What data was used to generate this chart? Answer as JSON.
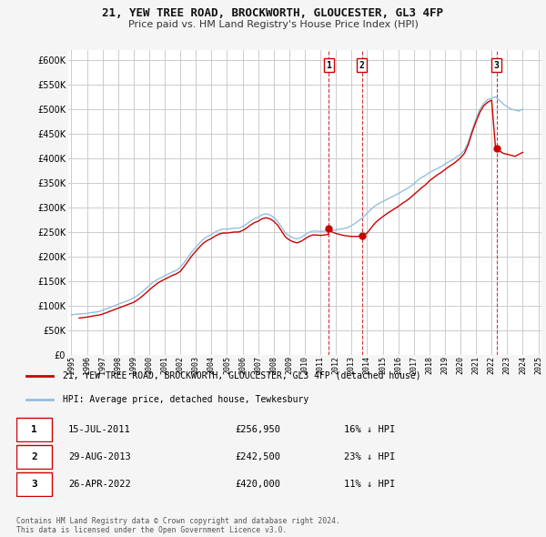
{
  "title1": "21, YEW TREE ROAD, BROCKWORTH, GLOUCESTER, GL3 4FP",
  "title2": "Price paid vs. HM Land Registry's House Price Index (HPI)",
  "ylim": [
    0,
    620000
  ],
  "yticks": [
    0,
    50000,
    100000,
    150000,
    200000,
    250000,
    300000,
    350000,
    400000,
    450000,
    500000,
    550000,
    600000
  ],
  "background_color": "#f5f5f5",
  "plot_bg_color": "#ffffff",
  "grid_color": "#cccccc",
  "hpi_color": "#92c0e0",
  "price_color": "#cc0000",
  "transactions": [
    {
      "date": 2011.54,
      "price": 256950,
      "label": "1"
    },
    {
      "date": 2013.66,
      "price": 242500,
      "label": "2"
    },
    {
      "date": 2022.32,
      "price": 420000,
      "label": "3"
    }
  ],
  "legend_price_label": "21, YEW TREE ROAD, BROCKWORTH, GLOUCESTER, GL3 4FP (detached house)",
  "legend_hpi_label": "HPI: Average price, detached house, Tewkesbury",
  "table_rows": [
    {
      "num": "1",
      "date": "15-JUL-2011",
      "price": "£256,950",
      "note": "16% ↓ HPI"
    },
    {
      "num": "2",
      "date": "29-AUG-2013",
      "price": "£242,500",
      "note": "23% ↓ HPI"
    },
    {
      "num": "3",
      "date": "26-APR-2022",
      "price": "£420,000",
      "note": "11% ↓ HPI"
    }
  ],
  "footer": "Contains HM Land Registry data © Crown copyright and database right 2024.\nThis data is licensed under the Open Government Licence v3.0.",
  "hpi_years": [
    1995.0,
    1995.25,
    1995.5,
    1995.75,
    1996.0,
    1996.25,
    1996.5,
    1996.75,
    1997.0,
    1997.25,
    1997.5,
    1997.75,
    1998.0,
    1998.25,
    1998.5,
    1998.75,
    1999.0,
    1999.25,
    1999.5,
    1999.75,
    2000.0,
    2000.25,
    2000.5,
    2000.75,
    2001.0,
    2001.25,
    2001.5,
    2001.75,
    2002.0,
    2002.25,
    2002.5,
    2002.75,
    2003.0,
    2003.25,
    2003.5,
    2003.75,
    2004.0,
    2004.25,
    2004.5,
    2004.75,
    2005.0,
    2005.25,
    2005.5,
    2005.75,
    2006.0,
    2006.25,
    2006.5,
    2006.75,
    2007.0,
    2007.25,
    2007.5,
    2007.75,
    2008.0,
    2008.25,
    2008.5,
    2008.75,
    2009.0,
    2009.25,
    2009.5,
    2009.75,
    2010.0,
    2010.25,
    2010.5,
    2010.75,
    2011.0,
    2011.25,
    2011.5,
    2011.75,
    2012.0,
    2012.25,
    2012.5,
    2012.75,
    2013.0,
    2013.25,
    2013.5,
    2013.75,
    2014.0,
    2014.25,
    2014.5,
    2014.75,
    2015.0,
    2015.25,
    2015.5,
    2015.75,
    2016.0,
    2016.25,
    2016.5,
    2016.75,
    2017.0,
    2017.25,
    2017.5,
    2017.75,
    2018.0,
    2018.25,
    2018.5,
    2018.75,
    2019.0,
    2019.25,
    2019.5,
    2019.75,
    2020.0,
    2020.25,
    2020.5,
    2020.75,
    2021.0,
    2021.25,
    2021.5,
    2021.75,
    2022.0,
    2022.25,
    2022.5,
    2022.75,
    2023.0,
    2023.25,
    2023.5,
    2023.75,
    2024.0
  ],
  "hpi_values": [
    82000,
    82500,
    83500,
    84000,
    84500,
    86000,
    87000,
    88000,
    91000,
    94000,
    97000,
    100000,
    103000,
    106000,
    109000,
    112000,
    116000,
    121000,
    127000,
    134000,
    141000,
    148000,
    153000,
    157000,
    161000,
    165000,
    169000,
    172000,
    178000,
    188000,
    199000,
    210000,
    219000,
    228000,
    236000,
    241000,
    245000,
    250000,
    254000,
    256000,
    256000,
    257000,
    258000,
    258000,
    261000,
    266000,
    272000,
    277000,
    280000,
    285000,
    287000,
    285000,
    280000,
    272000,
    260000,
    248000,
    242000,
    238000,
    236000,
    239000,
    244000,
    249000,
    252000,
    252000,
    251000,
    252000,
    253000,
    253000,
    254000,
    256000,
    257000,
    259000,
    263000,
    268000,
    274000,
    280000,
    288000,
    296000,
    303000,
    308000,
    312000,
    316000,
    320000,
    324000,
    328000,
    333000,
    337000,
    342000,
    348000,
    355000,
    361000,
    365000,
    371000,
    375000,
    379000,
    383000,
    388000,
    393000,
    397000,
    403000,
    408000,
    416000,
    433000,
    458000,
    480000,
    500000,
    512000,
    519000,
    522000,
    525000,
    518000,
    510000,
    505000,
    500000,
    498000,
    496000,
    500000
  ],
  "price_years_segments": [
    [
      1995.5,
      1995.75,
      1996.0,
      1996.25,
      1996.5,
      1996.75,
      1997.0,
      1997.25,
      1997.5,
      1997.75,
      1998.0,
      1998.25,
      1998.5,
      1998.75,
      1999.0,
      1999.25,
      1999.5,
      1999.75,
      2000.0,
      2000.25,
      2000.5,
      2000.75,
      2001.0,
      2001.25,
      2001.5,
      2001.75,
      2002.0,
      2002.25,
      2002.5,
      2002.75,
      2003.0,
      2003.25,
      2003.5,
      2003.75,
      2004.0,
      2004.25,
      2004.5,
      2004.75,
      2005.0,
      2005.25,
      2005.5,
      2005.75,
      2006.0,
      2006.25,
      2006.5,
      2006.75,
      2007.0,
      2007.25,
      2007.5,
      2007.75,
      2008.0,
      2008.25,
      2008.5,
      2008.75,
      2009.0,
      2009.25,
      2009.5,
      2009.75,
      2010.0,
      2010.25,
      2010.5,
      2010.75,
      2011.0,
      2011.25,
      2011.5,
      2011.54
    ],
    [
      2011.54,
      2011.75,
      2012.0,
      2012.25,
      2012.5,
      2012.75,
      2013.0,
      2013.25,
      2013.5,
      2013.66
    ],
    [
      2013.66,
      2013.75,
      2014.0,
      2014.25,
      2014.5,
      2014.75,
      2015.0,
      2015.25,
      2015.5,
      2015.75,
      2016.0,
      2016.25,
      2016.5,
      2016.75,
      2017.0,
      2017.25,
      2017.5,
      2017.75,
      2018.0,
      2018.25,
      2018.5,
      2018.75,
      2019.0,
      2019.25,
      2019.5,
      2019.75,
      2020.0,
      2020.25,
      2020.5,
      2020.75,
      2021.0,
      2021.25,
      2021.5,
      2021.75,
      2022.0,
      2022.25,
      2022.32
    ],
    [
      2022.32,
      2022.5,
      2022.75,
      2023.0,
      2023.25,
      2023.5,
      2023.75,
      2024.0
    ]
  ],
  "price_values_segments": [
    [
      75000,
      76000,
      77000,
      78500,
      80000,
      81000,
      83000,
      86000,
      89000,
      92000,
      95000,
      98000,
      101000,
      104000,
      107000,
      112000,
      118000,
      125000,
      132000,
      139000,
      145000,
      150000,
      154000,
      158000,
      162000,
      165000,
      170000,
      180000,
      191000,
      202000,
      211000,
      220000,
      228000,
      233000,
      237000,
      242000,
      246000,
      248000,
      248000,
      249000,
      250000,
      250000,
      253000,
      258000,
      264000,
      269000,
      272000,
      277000,
      279000,
      277000,
      272000,
      264000,
      252000,
      240000,
      234000,
      230000,
      228000,
      231000,
      236000,
      241000,
      244000,
      244000,
      243000,
      244000,
      245000,
      256950
    ],
    [
      256950,
      250000,
      247000,
      245000,
      243000,
      242000,
      241000,
      241000,
      241000,
      242500
    ],
    [
      242500,
      243000,
      248000,
      258000,
      268000,
      275000,
      281000,
      287000,
      292000,
      297000,
      302000,
      308000,
      313000,
      319000,
      326000,
      333000,
      340000,
      346000,
      354000,
      360000,
      366000,
      371000,
      377000,
      383000,
      388000,
      394000,
      401000,
      410000,
      428000,
      453000,
      475000,
      494000,
      507000,
      514000,
      518000,
      421000,
      420000
    ],
    [
      420000,
      415000,
      410000,
      408000,
      406000,
      404000,
      408000,
      412000
    ]
  ]
}
